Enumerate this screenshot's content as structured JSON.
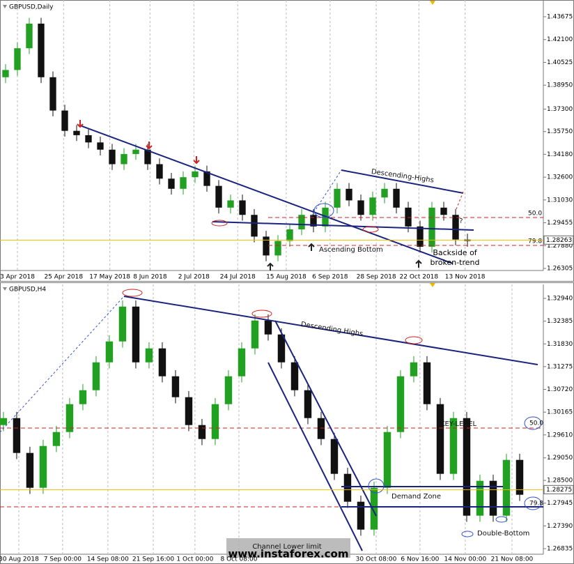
{
  "chart_data": [
    {
      "type": "candlestick",
      "title": "GBPUSD,Daily",
      "up_color": "#22a022",
      "down_color": "#111111",
      "grid": true,
      "xlim": [
        -0.47,
        45.41
      ],
      "xticks": [
        {
          "value": 1.0,
          "label": "3 Apr 2018"
        },
        {
          "value": 4.9,
          "label": "25 Apr 2018"
        },
        {
          "value": 8.8,
          "label": "17 May 2018"
        },
        {
          "value": 12.2,
          "label": "8 Jun 2018"
        },
        {
          "value": 15.9,
          "label": "2 Jul 2018"
        },
        {
          "value": 19.6,
          "label": "24 Jul 2018"
        },
        {
          "value": 23.7,
          "label": "15 Aug 2018"
        },
        {
          "value": 27.4,
          "label": "6 Sep 2018"
        },
        {
          "value": 31.3,
          "label": "28 Sep 2018"
        },
        {
          "value": 34.9,
          "label": "22 Oct 2018"
        },
        {
          "value": 38.8,
          "label": "13 Nov 2018"
        }
      ],
      "ylim": [
        1.26161,
        1.4483
      ],
      "yticks": [
        {
          "value": 1.43675,
          "label": "1.43675"
        },
        {
          "value": 1.421,
          "label": "1.42100"
        },
        {
          "value": 1.40525,
          "label": "1.40525"
        },
        {
          "value": 1.3895,
          "label": "1.38950"
        },
        {
          "value": 1.373,
          "label": "1.37300"
        },
        {
          "value": 1.3575,
          "label": "1.35750"
        },
        {
          "value": 1.3418,
          "label": "1.34180"
        },
        {
          "value": 1.326,
          "label": "1.32600"
        },
        {
          "value": 1.3103,
          "label": "1.31030"
        },
        {
          "value": 1.29455,
          "label": "1.29455"
        },
        {
          "value": 1.2788,
          "label": "1.27880"
        },
        {
          "value": 1.26305,
          "label": "1.26305"
        }
      ],
      "last_price": 1.28263,
      "open": [
        1.395,
        1.4,
        1.415,
        1.432,
        1.395,
        1.372,
        1.358,
        1.355,
        1.35,
        1.345,
        1.335,
        1.342,
        1.345,
        1.335,
        1.325,
        1.318,
        1.326,
        1.33,
        1.32,
        1.305,
        1.31,
        1.3,
        1.285,
        1.272,
        1.282,
        1.29,
        1.3,
        1.292,
        1.305,
        1.318,
        1.31,
        1.3,
        1.312,
        1.318,
        1.305,
        1.292,
        1.278,
        1.305,
        1.3,
        1.283
      ],
      "high": [
        1.404,
        1.419,
        1.436,
        1.436,
        1.399,
        1.376,
        1.362,
        1.359,
        1.354,
        1.349,
        1.346,
        1.349,
        1.349,
        1.339,
        1.329,
        1.33,
        1.334,
        1.334,
        1.324,
        1.314,
        1.314,
        1.304,
        1.289,
        1.286,
        1.294,
        1.304,
        1.304,
        1.309,
        1.322,
        1.322,
        1.314,
        1.316,
        1.322,
        1.322,
        1.309,
        1.296,
        1.309,
        1.309,
        1.304,
        1.287
      ],
      "low": [
        1.391,
        1.396,
        1.411,
        1.391,
        1.368,
        1.354,
        1.351,
        1.346,
        1.341,
        1.331,
        1.331,
        1.338,
        1.331,
        1.321,
        1.314,
        1.314,
        1.322,
        1.316,
        1.301,
        1.301,
        1.296,
        1.281,
        1.268,
        1.268,
        1.278,
        1.286,
        1.288,
        1.288,
        1.301,
        1.306,
        1.296,
        1.296,
        1.308,
        1.301,
        1.288,
        1.274,
        1.274,
        1.296,
        1.279,
        1.278
      ],
      "close": [
        1.4,
        1.415,
        1.432,
        1.395,
        1.372,
        1.358,
        1.355,
        1.35,
        1.345,
        1.335,
        1.342,
        1.345,
        1.335,
        1.325,
        1.318,
        1.326,
        1.33,
        1.32,
        1.305,
        1.31,
        1.3,
        1.285,
        1.272,
        1.282,
        1.29,
        1.3,
        1.292,
        1.305,
        1.318,
        1.31,
        1.3,
        1.312,
        1.318,
        1.305,
        1.292,
        1.278,
        1.305,
        1.3,
        1.283,
        1.282
      ],
      "annotations": [
        "Descending-Highs",
        "Ascending Bottom",
        "Backside of broken-trend",
        "??",
        "50.0",
        "79.8"
      ]
    },
    {
      "type": "candlestick",
      "title": "GBPUSD,H4",
      "up_color": "#22a022",
      "down_color": "#111111",
      "grid": true,
      "xlim": [
        -0.26,
        40.79
      ],
      "xticks": [
        {
          "value": 1.16,
          "label": "30 Aug 2018"
        },
        {
          "value": 4.47,
          "label": "7 Sep 00:00"
        },
        {
          "value": 7.89,
          "label": "14 Sep 08:00"
        },
        {
          "value": 11.32,
          "label": "21 Sep 16:00"
        },
        {
          "value": 14.47,
          "label": "1 Oct 00:00"
        },
        {
          "value": 17.79,
          "label": "8 Oct 08:00"
        },
        {
          "value": 28.16,
          "label": "30 Oct 08:00"
        },
        {
          "value": 31.47,
          "label": "6 Nov 16:00"
        },
        {
          "value": 34.89,
          "label": "14 Nov 00:00"
        },
        {
          "value": 38.42,
          "label": "21 Nov 08:00"
        }
      ],
      "ylim": [
        1.26699,
        1.3328
      ],
      "yticks": [
        {
          "value": 1.3294,
          "label": "1.32940"
        },
        {
          "value": 1.32385,
          "label": "1.32385"
        },
        {
          "value": 1.3183,
          "label": "1.31830"
        },
        {
          "value": 1.31275,
          "label": "1.31275"
        },
        {
          "value": 1.3072,
          "label": "1.30720"
        },
        {
          "value": 1.30165,
          "label": "1.30165"
        },
        {
          "value": 1.2961,
          "label": "1.29610"
        },
        {
          "value": 1.2905,
          "label": "1.29050"
        },
        {
          "value": 1.285,
          "label": "1.28500"
        },
        {
          "value": 1.27945,
          "label": "1.27945"
        },
        {
          "value": 1.2739,
          "label": "1.27390"
        },
        {
          "value": 1.26835,
          "label": "1.26835"
        }
      ],
      "last_price": 1.28275,
      "open": [
        1.2985,
        1.3002,
        1.2917,
        1.2832,
        1.2934,
        1.2968,
        1.3036,
        1.307,
        1.3138,
        1.3189,
        1.3274,
        1.3138,
        1.3172,
        1.3104,
        1.3053,
        1.2985,
        1.2951,
        1.3036,
        1.3104,
        1.3172,
        1.324,
        1.3206,
        1.3138,
        1.307,
        1.3002,
        1.2951,
        1.2866,
        1.2798,
        1.273,
        1.2832,
        1.2968,
        1.3104,
        1.3138,
        1.3036,
        1.2866,
        1.3002,
        1.2764,
        1.2849,
        1.2764,
        1.29
      ],
      "high": [
        1.3017,
        1.3017,
        1.2932,
        1.2949,
        1.2983,
        1.3051,
        1.3085,
        1.3153,
        1.3204,
        1.3289,
        1.3289,
        1.3187,
        1.3187,
        1.3119,
        1.3068,
        1.3,
        1.3051,
        1.3119,
        1.3187,
        1.3255,
        1.3255,
        1.3221,
        1.3153,
        1.3085,
        1.3017,
        1.2966,
        1.2881,
        1.2813,
        1.2847,
        1.2983,
        1.3119,
        1.3153,
        1.3153,
        1.3051,
        1.3017,
        1.3017,
        1.2864,
        1.2864,
        1.2915,
        1.2915
      ],
      "low": [
        1.297,
        1.2902,
        1.2817,
        1.2817,
        1.2919,
        1.2953,
        1.3021,
        1.3055,
        1.3123,
        1.3174,
        1.3123,
        1.3123,
        1.3089,
        1.3038,
        1.297,
        1.2936,
        1.2936,
        1.3021,
        1.3089,
        1.3157,
        1.3191,
        1.3123,
        1.3055,
        1.2987,
        1.2936,
        1.2851,
        1.2783,
        1.2715,
        1.2715,
        1.2817,
        1.2953,
        1.3089,
        1.3021,
        1.2851,
        1.2851,
        1.2749,
        1.2749,
        1.2749,
        1.2749,
        1.28
      ],
      "close": [
        1.3002,
        1.2917,
        1.2832,
        1.2934,
        1.2968,
        1.3036,
        1.307,
        1.3138,
        1.3189,
        1.3274,
        1.3138,
        1.3172,
        1.3104,
        1.3053,
        1.2985,
        1.2951,
        1.3036,
        1.3104,
        1.3172,
        1.324,
        1.3206,
        1.3138,
        1.307,
        1.3002,
        1.2951,
        1.2866,
        1.2798,
        1.273,
        1.2832,
        1.2968,
        1.3104,
        1.3138,
        1.3036,
        1.2866,
        1.3002,
        1.2764,
        1.2849,
        1.2764,
        1.29,
        1.2815
      ],
      "annotations": [
        "Descending Highs",
        "Demand Zone",
        "KEY-LEVEL",
        "Double-Bottom",
        "Channel Lower limit",
        "50.0",
        "79.8"
      ],
      "watermark": "www.instaforex.com"
    }
  ]
}
